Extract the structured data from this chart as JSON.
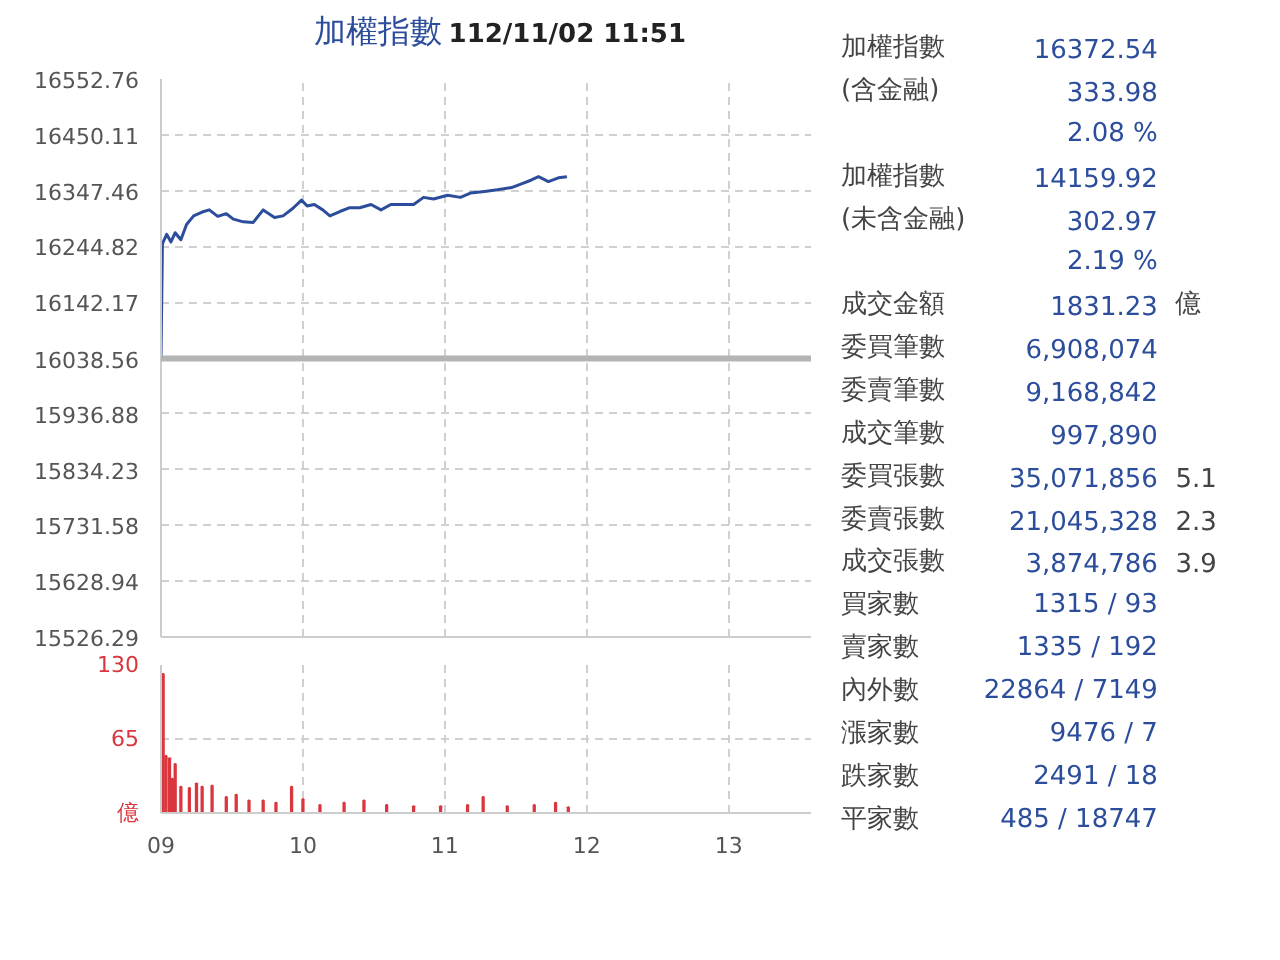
{
  "chart_data": [
    {
      "type": "line",
      "title": "加權指數",
      "subtitle": "112/11/02 11:51",
      "xlim": [
        9,
        13.58
      ],
      "xticks": [
        9,
        10,
        11,
        12,
        13
      ],
      "ylim": [
        15526.29,
        16552.76
      ],
      "yticks": [
        15526.29,
        15628.94,
        15731.58,
        15834.23,
        15936.88,
        16038.56,
        16142.17,
        16244.82,
        16347.46,
        16450.11,
        16552.76
      ],
      "grid": true,
      "tick_labels": "y",
      "line_style": "solid",
      "ref_lines": [
        {
          "axis": "y",
          "value": 16038.56,
          "label": null,
          "color": "#b4b4b4"
        }
      ],
      "x": [
        9.0,
        9.01,
        9.04,
        9.07,
        9.1,
        9.14,
        9.18,
        9.23,
        9.29,
        9.34,
        9.4,
        9.46,
        9.51,
        9.58,
        9.65,
        9.72,
        9.8,
        9.86,
        9.93,
        9.99,
        10.03,
        10.08,
        10.14,
        10.19,
        10.26,
        10.33,
        10.4,
        10.48,
        10.55,
        10.62,
        10.69,
        10.78,
        10.85,
        10.92,
        11.02,
        11.11,
        11.18,
        11.28,
        11.37,
        11.47,
        11.54,
        11.61,
        11.66,
        11.73,
        11.8,
        11.86
      ],
      "series": [
        {
          "color": "#2b4d9b",
          "values": [
            16039,
            16250,
            16267,
            16253,
            16270,
            16257,
            16285,
            16301,
            16308,
            16312,
            16300,
            16305,
            16295,
            16290,
            16289,
            16312,
            16298,
            16301,
            16315,
            16330,
            16319,
            16322,
            16312,
            16301,
            16309,
            16316,
            16316,
            16322,
            16312,
            16322,
            16322,
            16322,
            16335,
            16332,
            16339,
            16335,
            16343,
            16346,
            16349,
            16353,
            16360,
            16367,
            16373,
            16364,
            16371,
            16373
          ]
        }
      ]
    },
    {
      "type": "bar",
      "color": "#d9363e",
      "xlim": [
        9,
        13.58
      ],
      "xticks": [
        {
          "value": 9,
          "label": "09"
        },
        10,
        11,
        12,
        13
      ],
      "ylim": [
        0,
        130
      ],
      "yticks": [
        {
          "value": 0,
          "label": "億"
        },
        65,
        130
      ],
      "grid": true,
      "x": [
        9.015,
        9.035,
        9.06,
        9.08,
        9.1,
        9.14,
        9.2,
        9.25,
        9.29,
        9.36,
        9.46,
        9.53,
        9.62,
        9.72,
        9.81,
        9.92,
        10.0,
        10.12,
        10.29,
        10.43,
        10.59,
        10.78,
        10.97,
        11.16,
        11.27,
        11.44,
        11.63,
        11.78,
        11.87
      ],
      "values": [
        122,
        50,
        48,
        30,
        43,
        23,
        22,
        26,
        23,
        24,
        14,
        16,
        11,
        11,
        9,
        23,
        12,
        7,
        9,
        11,
        7,
        6,
        6,
        7,
        14,
        6,
        7,
        9,
        5
      ]
    },
    {
      "type": "other",
      "categories": [
        "加權指數",
        "(含金融)",
        null,
        "加權指數",
        "(未含金融)",
        null,
        "成交金額",
        "委買筆數",
        "委賣筆數",
        "成交筆數",
        "委買張數",
        "委賣張數",
        "成交張數",
        "買家數",
        "賣家數",
        "內外數",
        "漲家數",
        "跌家數",
        "平家數"
      ],
      "value_labels": [
        "16372.54",
        "333.98",
        "2.08 %",
        "14159.92",
        "302.97",
        "2.19 %",
        "1831.23",
        "6,908,074",
        "9,168,842",
        "997,890",
        "35,071,856",
        "21,045,328",
        "3,874,786",
        "1315 / 93",
        "1335 / 192",
        "22864 / 7149",
        "9476 / 7",
        "2491 / 18",
        "485 / 18747"
      ],
      "annotations": [
        {
          "text": "億",
          "y": "成交金額"
        },
        {
          "text": "5.1",
          "y": "委買張數"
        },
        {
          "text": "2.3",
          "y": "委賣張數"
        },
        {
          "text": "3.9",
          "y": "成交張數"
        }
      ]
    }
  ]
}
